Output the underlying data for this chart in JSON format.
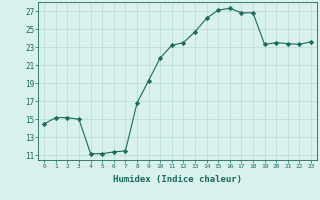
{
  "x": [
    0,
    1,
    2,
    3,
    4,
    5,
    6,
    7,
    8,
    9,
    10,
    11,
    12,
    13,
    14,
    15,
    16,
    17,
    18,
    19,
    20,
    21,
    22,
    23
  ],
  "y": [
    14.5,
    15.2,
    15.2,
    15.0,
    11.2,
    11.2,
    11.4,
    11.5,
    16.8,
    19.3,
    21.8,
    23.2,
    23.5,
    24.7,
    26.2,
    27.1,
    27.3,
    26.8,
    26.8,
    23.3,
    23.5,
    23.4,
    23.3,
    23.6
  ],
  "xlabel": "Humidex (Indice chaleur)",
  "xlim": [
    -0.5,
    23.5
  ],
  "ylim": [
    10.5,
    28
  ],
  "yticks": [
    11,
    13,
    15,
    17,
    19,
    21,
    23,
    25,
    27
  ],
  "xticks": [
    0,
    1,
    2,
    3,
    4,
    5,
    6,
    7,
    8,
    9,
    10,
    11,
    12,
    13,
    14,
    15,
    16,
    17,
    18,
    19,
    20,
    21,
    22,
    23
  ],
  "line_color": "#1a6b5a",
  "marker": "D",
  "marker_size": 2.2,
  "bg_color": "#d8f0ee",
  "grid_color": "#b8d8d4",
  "fig_bg": "#d8f0ee"
}
